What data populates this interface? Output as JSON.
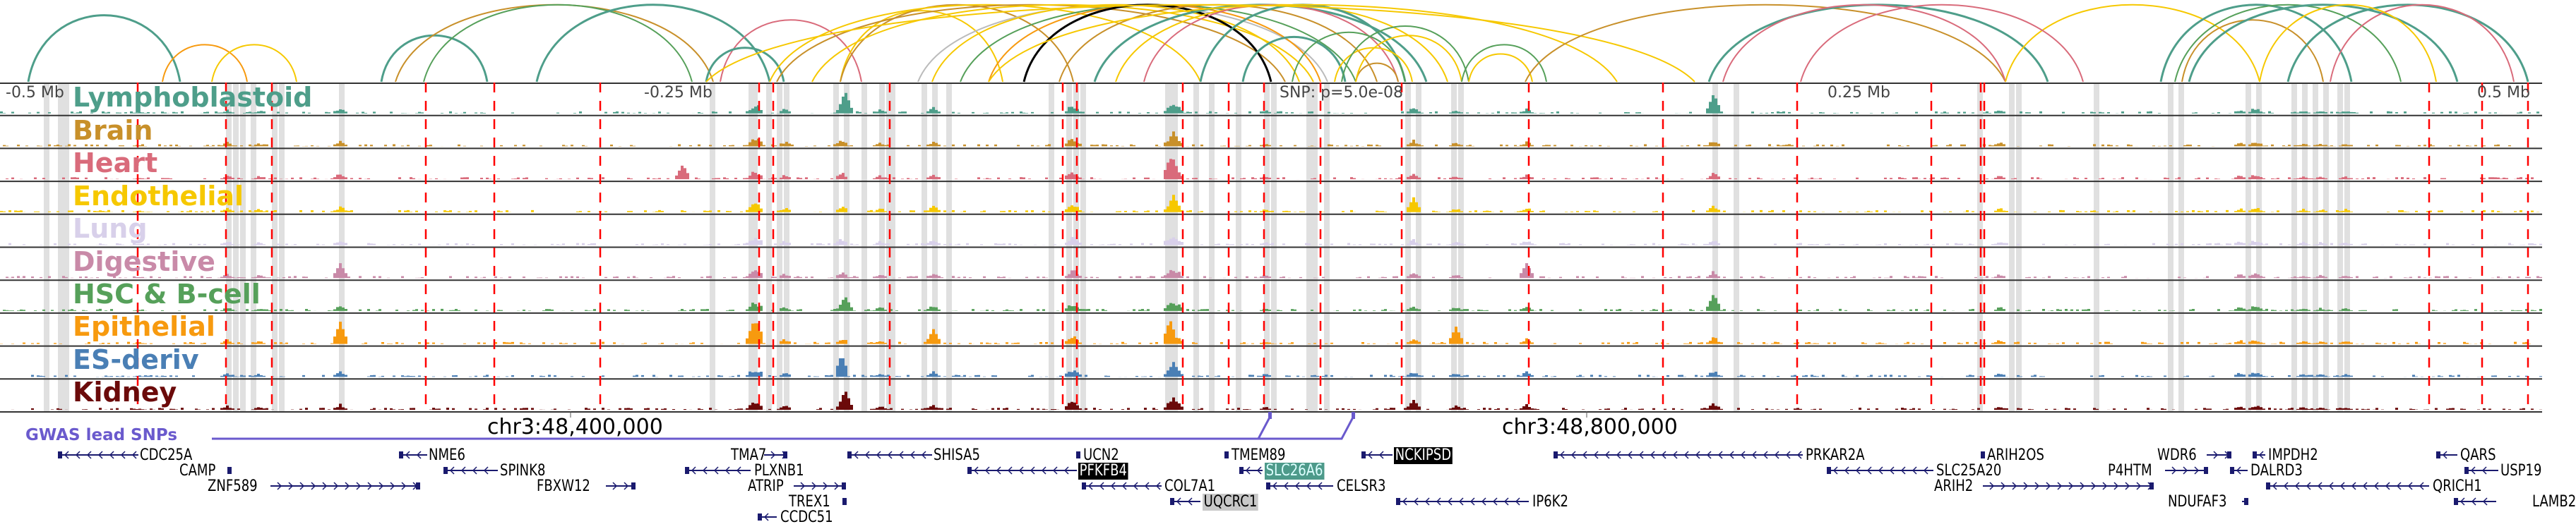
{
  "header": {
    "ticks": [
      "-0.5 Mb",
      "-0.25 Mb",
      "SNP: p=5.0e-08",
      "0.25 Mb",
      "0.5 Mb"
    ]
  },
  "tracks": [
    {
      "label": "Lymphoblastoid",
      "color": "#4e9e8a"
    },
    {
      "label": "Brain",
      "color": "#c8902a"
    },
    {
      "label": "Heart",
      "color": "#d96b7b"
    },
    {
      "label": "Endothelial",
      "color": "#f6c800"
    },
    {
      "label": "Lung",
      "color": "#d8d0ea"
    },
    {
      "label": "Digestive",
      "color": "#c98aa8"
    },
    {
      "label": "HSC & B-cell",
      "color": "#56a05a"
    },
    {
      "label": "Epithelial",
      "color": "#f79a0f"
    },
    {
      "label": "ES-deriv",
      "color": "#4a7fb5"
    },
    {
      "label": "Kidney",
      "color": "#6b0a0a"
    }
  ],
  "axis": {
    "left_label": "chr3:48,400,000",
    "right_label": "chr3:48,800,000"
  },
  "gwas": {
    "label": "GWAS lead SNPs",
    "color": "#6a5acd"
  },
  "genes": [
    {
      "name": "CDC25A"
    },
    {
      "name": "NME6"
    },
    {
      "name": "TMA7"
    },
    {
      "name": "SHISA5"
    },
    {
      "name": "UCN2"
    },
    {
      "name": "TMEM89"
    },
    {
      "name": "NCKIPSD"
    },
    {
      "name": "PRKAR2A"
    },
    {
      "name": "ARIH2OS"
    },
    {
      "name": "WDR6"
    },
    {
      "name": "IMPDH2"
    },
    {
      "name": "QARS"
    },
    {
      "name": "CAMP"
    },
    {
      "name": "SPINK8"
    },
    {
      "name": "PLXNB1"
    },
    {
      "name": "PFKFB4"
    },
    {
      "name": "SLC26A6"
    },
    {
      "name": "SLC25A20"
    },
    {
      "name": "P4HTM"
    },
    {
      "name": "DALRD3"
    },
    {
      "name": "USP19"
    },
    {
      "name": "ZNF589"
    },
    {
      "name": "FBXW12"
    },
    {
      "name": "ATRIP"
    },
    {
      "name": "COL7A1"
    },
    {
      "name": "CELSR3"
    },
    {
      "name": "ARIH2"
    },
    {
      "name": "QRICH1"
    },
    {
      "name": "TREX1"
    },
    {
      "name": "UQCRC1"
    },
    {
      "name": "IP6K2"
    },
    {
      "name": "NDUFAF3"
    },
    {
      "name": "LAMB2"
    },
    {
      "name": "CCDC51"
    }
  ],
  "colors": {
    "snp_line": "#ff0000",
    "highlight_band": "#e0e0e0",
    "gene": "#1a1a6e"
  }
}
